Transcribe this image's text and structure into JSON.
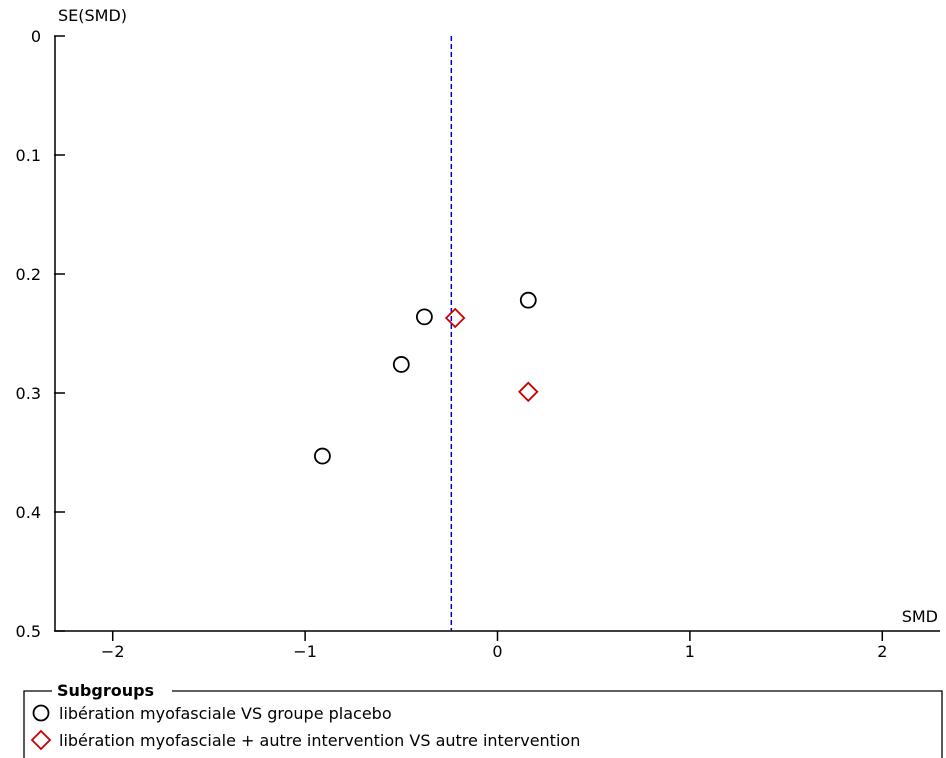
{
  "chart_data": {
    "type": "scatter",
    "title": "",
    "xlabel": "SMD",
    "ylabel": "SE(SMD)",
    "xlim": [
      -2.3,
      2.3
    ],
    "ylim": [
      0,
      0.5
    ],
    "y_inverted": true,
    "xticks": [
      -2,
      -1,
      0,
      1,
      2
    ],
    "xtick_labels": [
      "−2",
      "−1",
      "0",
      "1",
      "2"
    ],
    "yticks": [
      0,
      0.1,
      0.2,
      0.3,
      0.4,
      0.5
    ],
    "ytick_labels": [
      "0",
      "0.1",
      "0.2",
      "0.3",
      "0.4",
      "0.5"
    ],
    "grid": false,
    "reference_line": {
      "x": -0.24,
      "style": "dashed",
      "color": "#0000cc"
    },
    "legend": {
      "title": "Subgroups",
      "placement": "bottom"
    },
    "series": [
      {
        "name": "libération myofasciale VS groupe placebo",
        "marker": "circle",
        "color": "#000000",
        "points": [
          {
            "x": 0.16,
            "y": 0.222
          },
          {
            "x": -0.38,
            "y": 0.236
          },
          {
            "x": -0.5,
            "y": 0.276
          },
          {
            "x": -0.91,
            "y": 0.353
          }
        ]
      },
      {
        "name": "libération myofasciale + autre intervention VS autre intervention",
        "marker": "diamond",
        "color": "#cc0000",
        "points": [
          {
            "x": -0.22,
            "y": 0.237
          },
          {
            "x": 0.16,
            "y": 0.299
          }
        ]
      }
    ]
  }
}
